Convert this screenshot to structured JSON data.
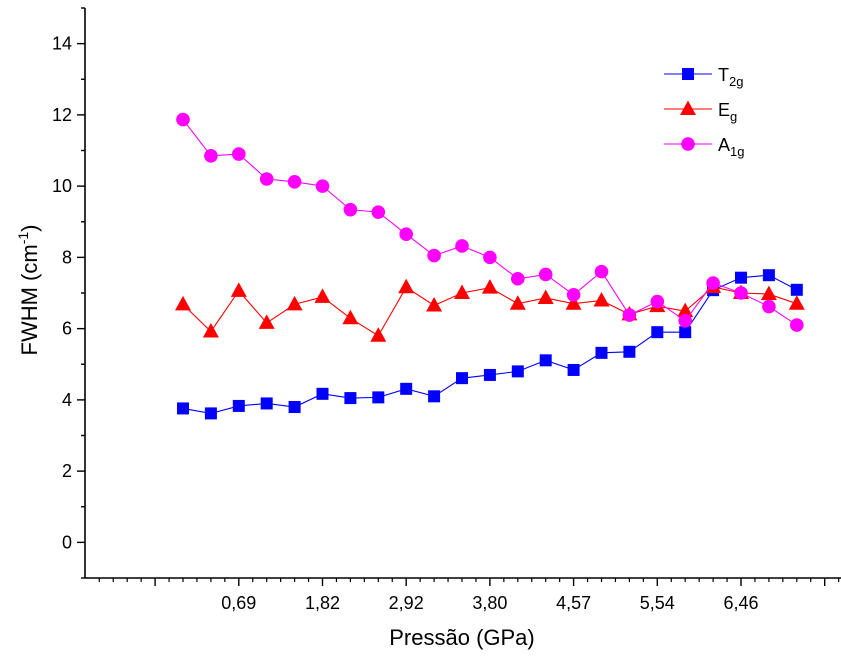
{
  "chart_data": {
    "type": "line",
    "xlabel": "Pressão (GPa)",
    "ylabel": {
      "main": "FWHM (cm",
      "sup": "-1",
      "end": ")"
    },
    "ylim": [
      -1,
      15
    ],
    "y_ticks": [
      "0",
      "2",
      "4",
      "6",
      "8",
      "10",
      "12",
      "14"
    ],
    "x_tick_labels": [
      "0,69",
      "1,82",
      "2,92",
      "3,80",
      "4,57",
      "5,54",
      "6,46"
    ],
    "x_scale": "categorical (measurement index); labels shown at every third point starting at the 3rd",
    "legend_position": "top-right",
    "grid": false,
    "series": [
      {
        "name": "T",
        "name_sub": "2g",
        "color": "#0000ff",
        "marker": "square",
        "values": [
          3.76,
          3.62,
          3.83,
          3.9,
          3.8,
          4.17,
          4.05,
          4.07,
          4.31,
          4.1,
          4.61,
          4.7,
          4.8,
          5.11,
          4.84,
          5.32,
          5.35,
          5.9,
          5.9,
          7.08,
          7.43,
          7.5,
          7.09
        ]
      },
      {
        "name": "E",
        "name_sub": "g",
        "color": "#ff0000",
        "marker": "triangle",
        "values": [
          6.68,
          5.92,
          7.06,
          6.16,
          6.68,
          6.89,
          6.29,
          5.8,
          7.16,
          6.65,
          7.0,
          7.15,
          6.7,
          6.86,
          6.7,
          6.79,
          6.4,
          6.63,
          6.49,
          7.17,
          7.0,
          6.97,
          6.7
        ]
      },
      {
        "name": "A",
        "name_sub": "1g",
        "color": "#ff00ff",
        "marker": "circle",
        "values": [
          11.87,
          10.85,
          10.9,
          10.2,
          10.12,
          10.0,
          9.34,
          9.27,
          8.65,
          8.05,
          8.32,
          8.0,
          7.4,
          7.52,
          6.95,
          7.6,
          6.38,
          6.76,
          6.22,
          7.28,
          7.0,
          6.62,
          6.1
        ]
      }
    ]
  }
}
